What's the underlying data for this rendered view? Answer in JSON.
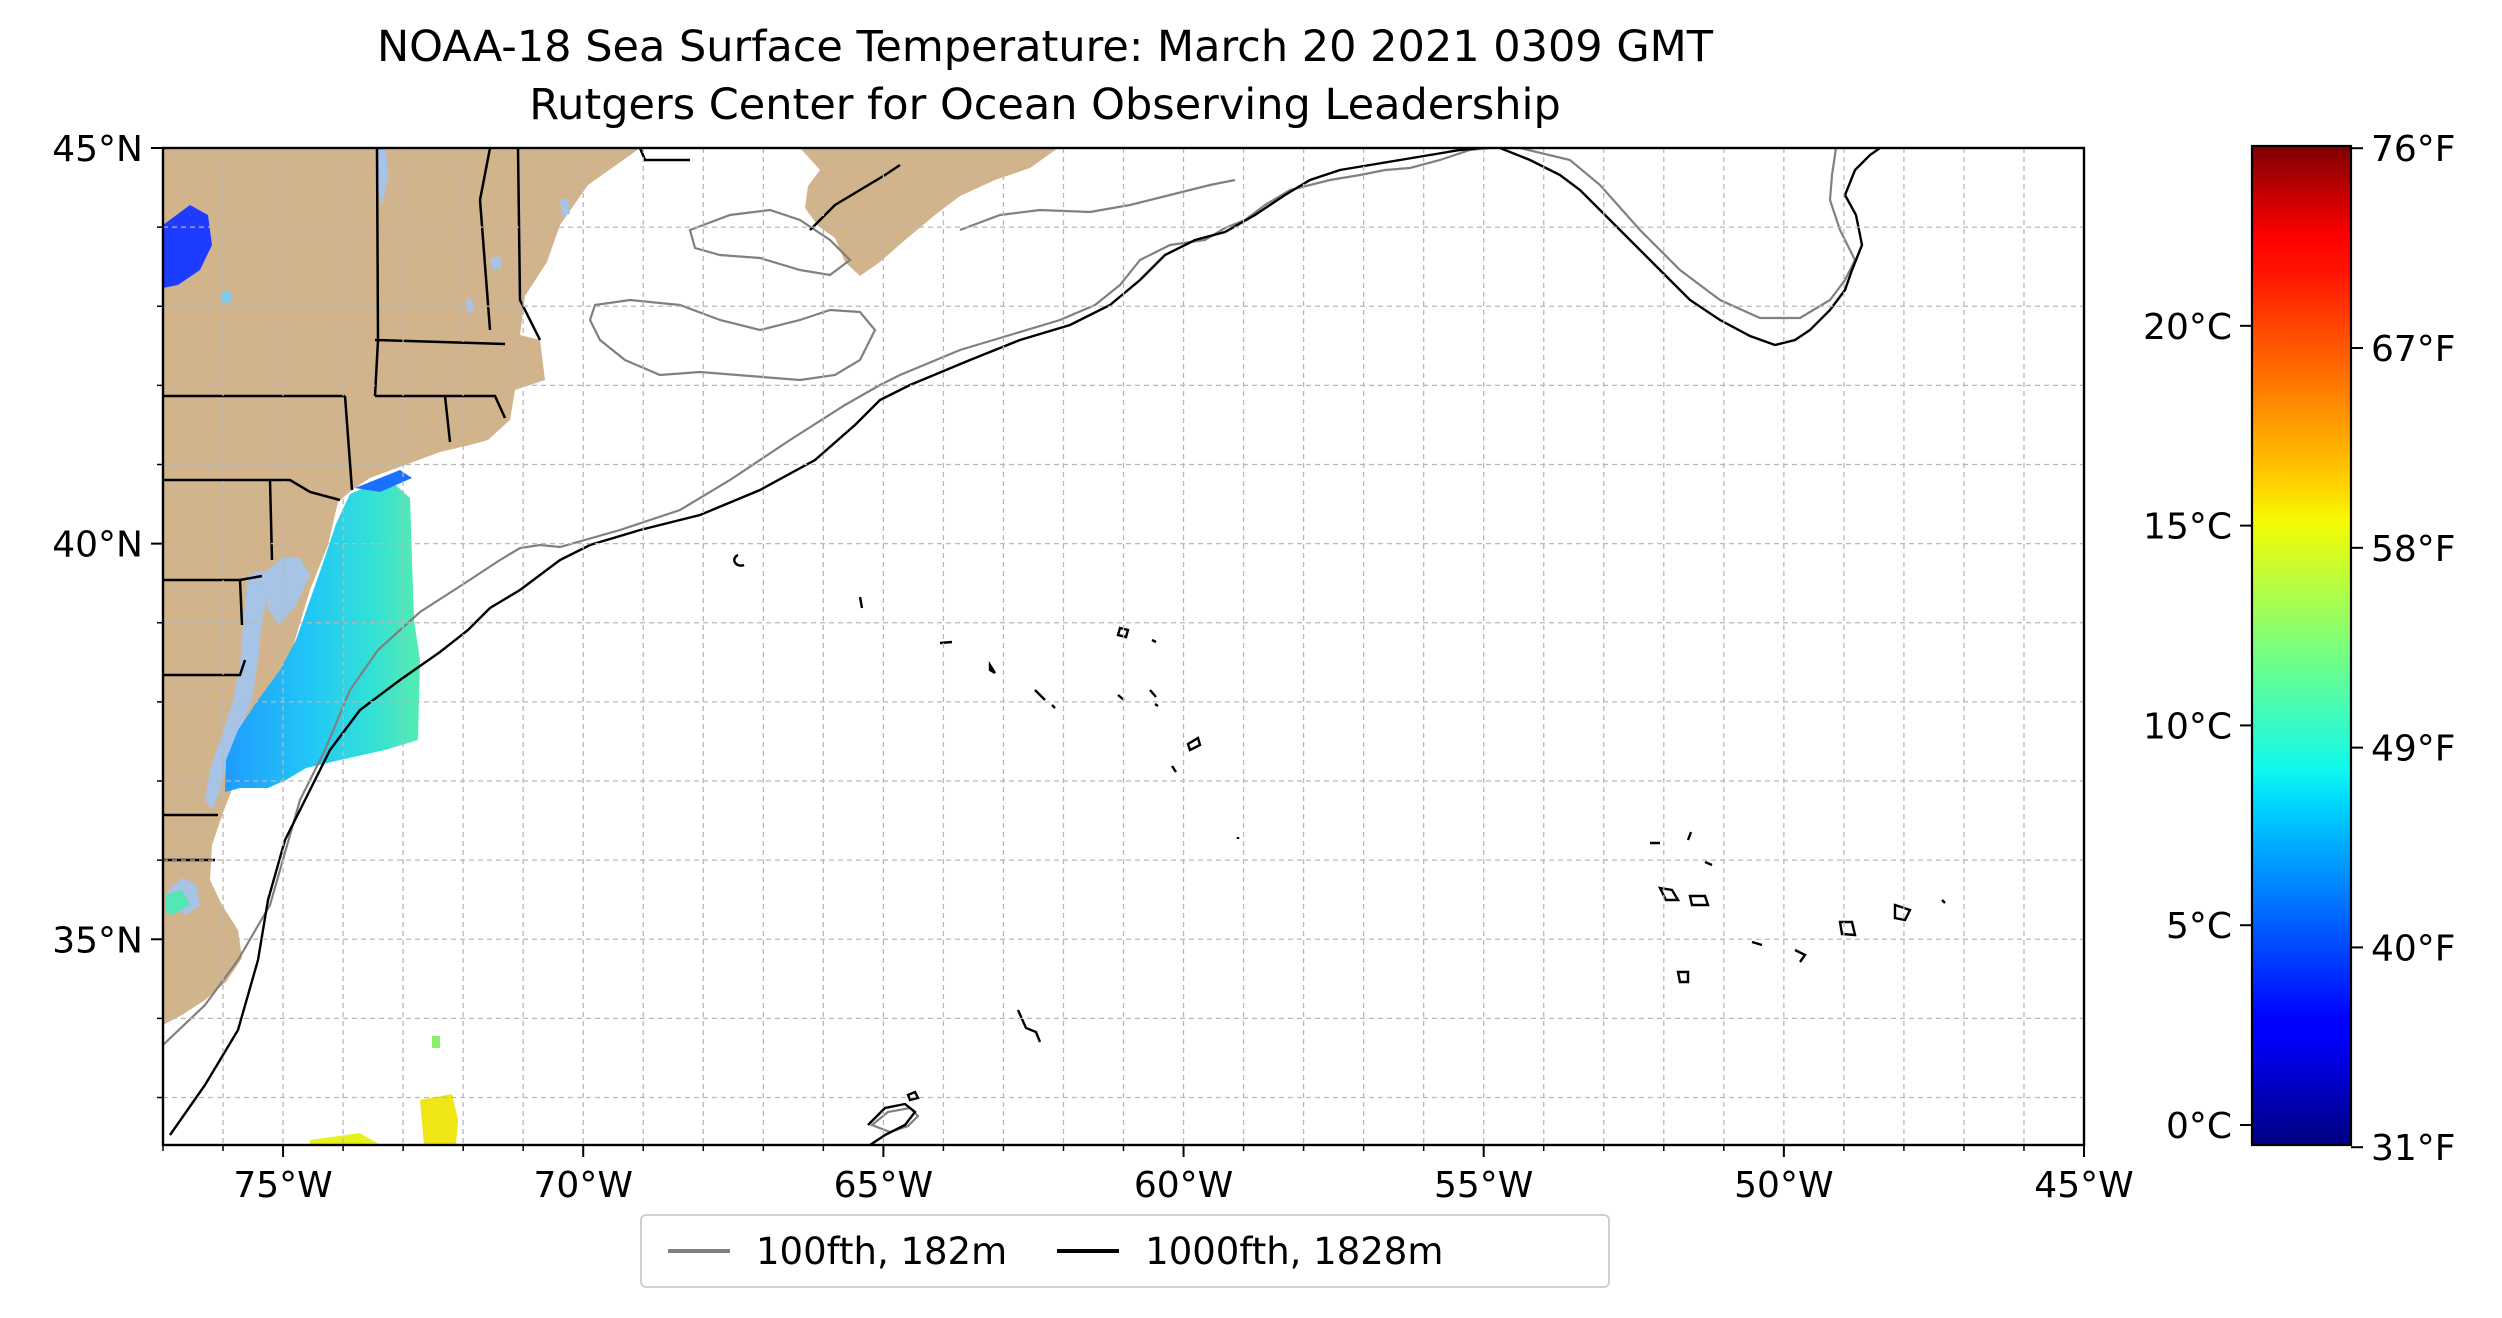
{
  "title": "NOAA-18 Sea Surface Temperature: March 20 2021 0309 GMT",
  "subtitle": "Rutgers Center for Ocean Observing Leadership",
  "map": {
    "lon_range": [
      -77,
      -45
    ],
    "lat_range": [
      32.4,
      45
    ],
    "lon_ticks": [
      {
        "value": -75,
        "label": "75°W"
      },
      {
        "value": -70,
        "label": "70°W"
      },
      {
        "value": -65,
        "label": "65°W"
      },
      {
        "value": -60,
        "label": "60°W"
      },
      {
        "value": -55,
        "label": "55°W"
      },
      {
        "value": -50,
        "label": "50°W"
      },
      {
        "value": -45,
        "label": "45°W"
      }
    ],
    "lat_ticks": [
      {
        "value": 45,
        "label": "45°N"
      },
      {
        "value": 40,
        "label": "40°N"
      },
      {
        "value": 35,
        "label": "35°N"
      }
    ],
    "land_color": "#d2b48c",
    "water_body_color": "#a7c3e6",
    "grid": true
  },
  "legend": {
    "items": [
      {
        "label": "100fth, 182m",
        "color": "#808080"
      },
      {
        "label": "1000fth, 1828m",
        "color": "#000000"
      }
    ]
  },
  "colorbar": {
    "colormap": "jet",
    "range_c": [
      -0.5,
      24.5
    ],
    "celsius_ticks": [
      {
        "value": 0,
        "label": "0°C"
      },
      {
        "value": 5,
        "label": "5°C"
      },
      {
        "value": 10,
        "label": "10°C"
      },
      {
        "value": 15,
        "label": "15°C"
      },
      {
        "value": 20,
        "label": "20°C"
      }
    ],
    "fahrenheit_ticks": [
      {
        "value": 31,
        "label": "31°F"
      },
      {
        "value": 40,
        "label": "40°F"
      },
      {
        "value": 49,
        "label": "49°F"
      },
      {
        "value": 58,
        "label": "58°F"
      },
      {
        "value": 67,
        "label": "67°F"
      },
      {
        "value": 76,
        "label": "76°F"
      }
    ]
  }
}
